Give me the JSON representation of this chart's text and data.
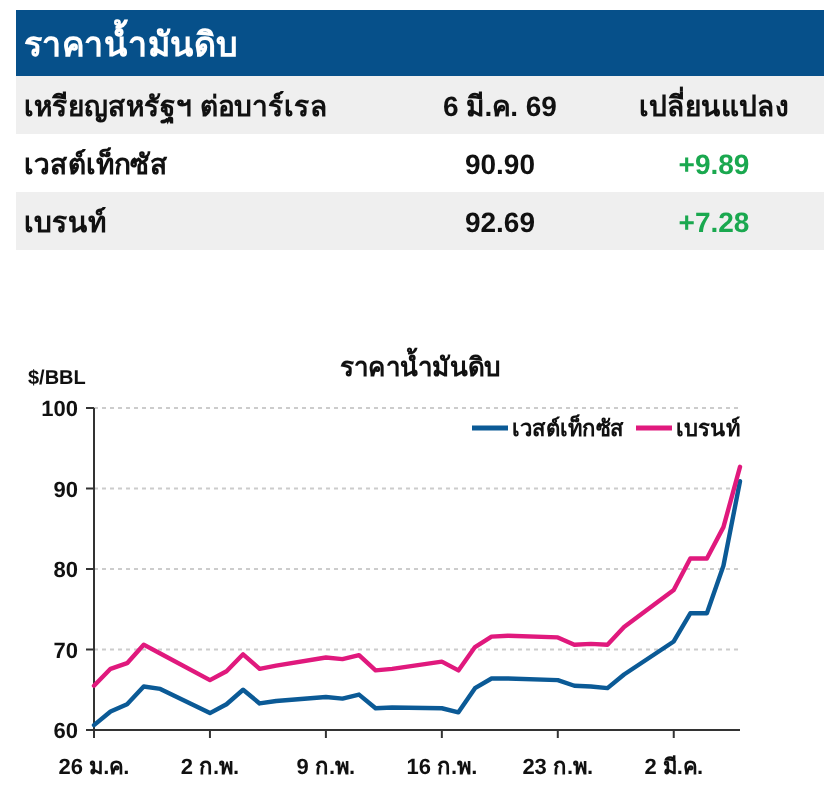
{
  "chart_data": [
    {
      "type": "other",
      "title": "ราคาน้ำมันดิบ",
      "annotations": [
        "เหรียญสหรัฐฯ ต่อบาร์เรล",
        "6 มี.ค. 69",
        "เปลี่ยนแปลง",
        "เวสต์เท็กซัส",
        "90.90",
        "+9.89",
        "เบรนท์",
        "92.69",
        "+7.28"
      ]
    },
    {
      "type": "line",
      "title": "ราคาน้ำมันดิบ",
      "ylabel": "$/BBL",
      "x": [
        "--01-26",
        "--01-27",
        "--01-28",
        "--01-29",
        "--01-30",
        "--02-02",
        "--02-03",
        "--02-04",
        "--02-05",
        "--02-06",
        "--02-09",
        "--02-10",
        "--02-11",
        "--02-12",
        "--02-13",
        "--02-16",
        "--02-17",
        "--02-18",
        "--02-19",
        "--02-20",
        "--02-23",
        "--02-24",
        "--02-25",
        "--02-26",
        "--02-27",
        "--03-02",
        "--03-03",
        "--03-04",
        "--03-05",
        "--03-06"
      ],
      "series": [
        {
          "name": "เวสต์เท็กซัส",
          "color": "#0b5a96",
          "values": [
            60.6,
            62.3,
            63.2,
            65.4,
            65.1,
            62.1,
            63.2,
            65.0,
            63.3,
            63.6,
            64.1,
            63.9,
            64.4,
            62.7,
            62.8,
            62.7,
            62.2,
            65.2,
            66.4,
            66.4,
            66.2,
            65.5,
            65.4,
            65.2,
            66.9,
            71.0,
            74.5,
            74.5,
            80.4,
            90.9
          ]
        },
        {
          "name": "เบรนท์",
          "color": "#e0197d",
          "values": [
            65.5,
            67.6,
            68.3,
            70.6,
            69.5,
            66.2,
            67.3,
            69.4,
            67.6,
            68.0,
            69.0,
            68.8,
            69.3,
            67.4,
            67.6,
            68.5,
            67.4,
            70.3,
            71.6,
            71.7,
            71.5,
            70.6,
            70.7,
            70.6,
            72.8,
            77.4,
            81.3,
            81.3,
            85.2,
            92.69
          ]
        }
      ],
      "xlim": [
        "--01-26",
        "--03-06"
      ],
      "xticks": [
        {
          "value": "--01-26",
          "label": "26 ม.ค."
        },
        {
          "value": "--02-02",
          "label": "2 ก.พ."
        },
        {
          "value": "--02-09",
          "label": "9 ก.พ."
        },
        {
          "value": "--02-16",
          "label": "16 ก.พ."
        },
        {
          "value": "--02-23",
          "label": "23 ก.พ."
        },
        {
          "value": "--03-02",
          "label": "2 มี.ค."
        }
      ],
      "ylim": [
        60,
        100
      ],
      "yticks": [
        60,
        70,
        80,
        90,
        100
      ],
      "grid": "y",
      "legend": "top right",
      "marker": "none",
      "line_style": "solid"
    }
  ]
}
